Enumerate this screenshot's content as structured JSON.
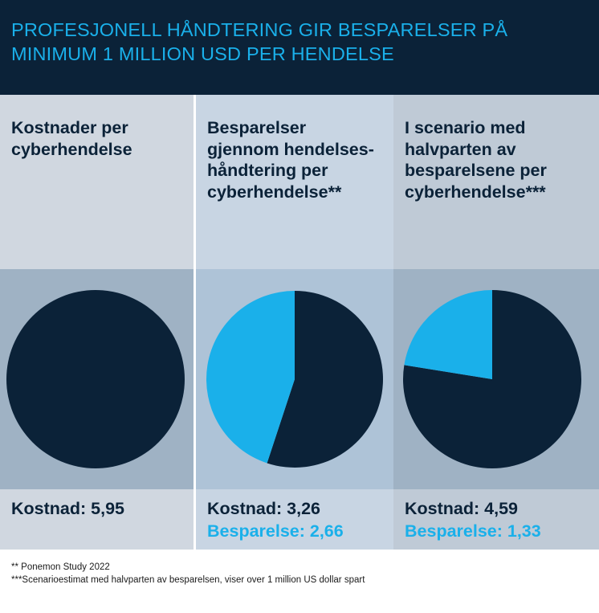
{
  "header": {
    "title": "PROFESJONELL HÅNDTERING GIR BESPARELSER PÅ MINIMUM 1 MILLION USD PER HENDELSE"
  },
  "colors": {
    "navy": "#0b2238",
    "cyan": "#1ab0ea",
    "col1_top": "#d0d7e0",
    "col1_mid": "#9fb2c4",
    "col1_bot": "#d0d7e0",
    "col2_top": "#c8d5e3",
    "col2_mid": "#aec3d7",
    "col2_bot": "#c8d5e3",
    "col3_top": "#bfcad6",
    "col3_mid": "#9fb2c4",
    "col3_bot": "#bfcad6"
  },
  "chart_data": [
    {
      "type": "pie",
      "title": "Kostnader per cyberhendelse",
      "slices": [
        {
          "label": "Kostnad",
          "value": 5.95,
          "color": "#0b2238"
        }
      ],
      "cost_label": "Kostnad: 5,95",
      "saving_label": ""
    },
    {
      "type": "pie",
      "title": "Besparelser gjennom hendelses- håndtering per cyberhendelse**",
      "slices": [
        {
          "label": "Kostnad",
          "value": 3.26,
          "color": "#0b2238"
        },
        {
          "label": "Besparelse",
          "value": 2.66,
          "color": "#1ab0ea"
        }
      ],
      "cost_label": "Kostnad: 3,26",
      "saving_label": "Besparelse: 2,66"
    },
    {
      "type": "pie",
      "title": "I scenario med halvparten av besparelsene per cyberhendelse***",
      "slices": [
        {
          "label": "Kostnad",
          "value": 4.59,
          "color": "#0b2238"
        },
        {
          "label": "Besparelse",
          "value": 1.33,
          "color": "#1ab0ea"
        }
      ],
      "cost_label": "Kostnad: 4,59",
      "saving_label": "Besparelse: 1,33"
    }
  ],
  "footnotes": [
    "** Ponemon Study 2022",
    "***Scenarioestimat med halvparten av besparelsen, viser over 1 million US dollar spart"
  ]
}
